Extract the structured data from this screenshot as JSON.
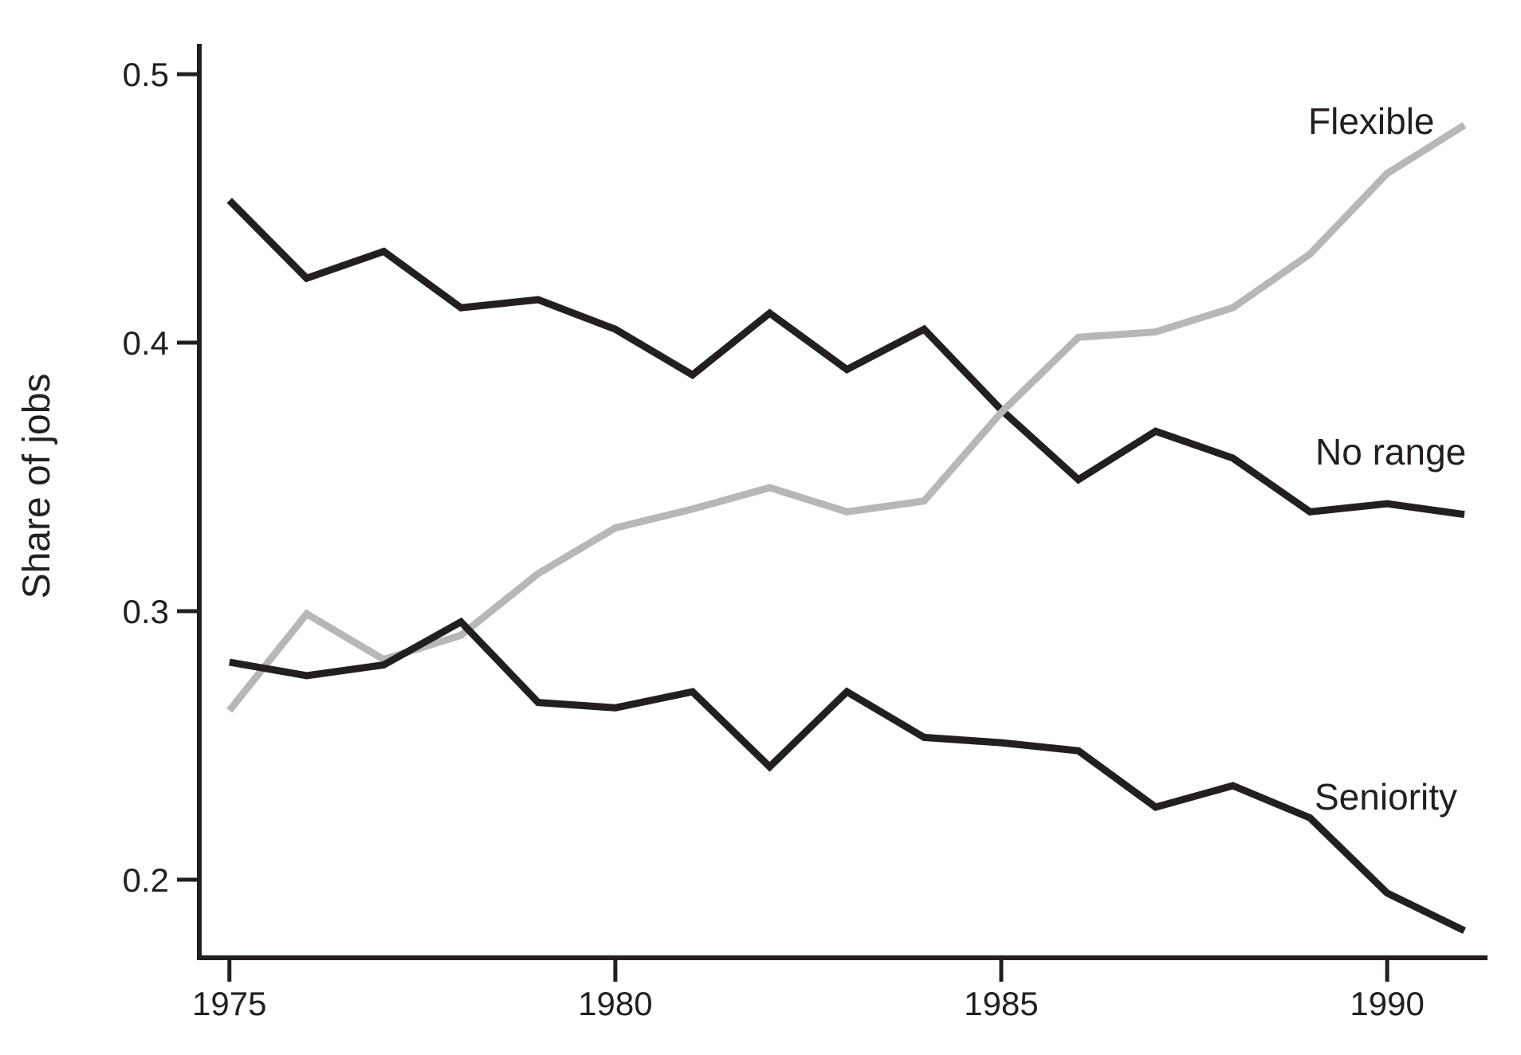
{
  "chart_data": {
    "type": "line",
    "title": "",
    "xlabel": "",
    "ylabel": "Share of jobs",
    "x": [
      1975,
      1976,
      1977,
      1978,
      1979,
      1980,
      1981,
      1982,
      1983,
      1984,
      1985,
      1986,
      1987,
      1988,
      1989,
      1990,
      1991
    ],
    "series": [
      {
        "name": "No range",
        "color": "#231f20",
        "values": [
          0.453,
          0.424,
          0.434,
          0.413,
          0.416,
          0.405,
          0.388,
          0.411,
          0.39,
          0.405,
          0.375,
          0.349,
          0.367,
          0.357,
          0.337,
          0.34,
          0.336
        ]
      },
      {
        "name": "Flexible",
        "color": "#b7b7b7",
        "values": [
          0.263,
          0.299,
          0.282,
          0.291,
          0.314,
          0.331,
          0.338,
          0.346,
          0.337,
          0.341,
          0.374,
          0.402,
          0.404,
          0.413,
          0.433,
          0.463,
          0.481
        ]
      },
      {
        "name": "Seniority",
        "color": "#231f20",
        "values": [
          0.281,
          0.276,
          0.28,
          0.296,
          0.266,
          0.264,
          0.27,
          0.242,
          0.27,
          0.253,
          0.251,
          0.248,
          0.227,
          0.235,
          0.223,
          0.195,
          0.181
        ]
      }
    ],
    "yticks": [
      0.5,
      0.4,
      0.3,
      0.2
    ],
    "xticks": [
      1975,
      1980,
      1985,
      1990
    ],
    "ylim": [
      0.1709,
      0.5113
    ],
    "xlim": [
      1974.61,
      1991.3
    ],
    "grid": false,
    "legend_position": "inline-labels"
  },
  "colors": {
    "line_black": "#231f20",
    "line_gray": "#b7b7b7",
    "background": "#ffffff"
  }
}
